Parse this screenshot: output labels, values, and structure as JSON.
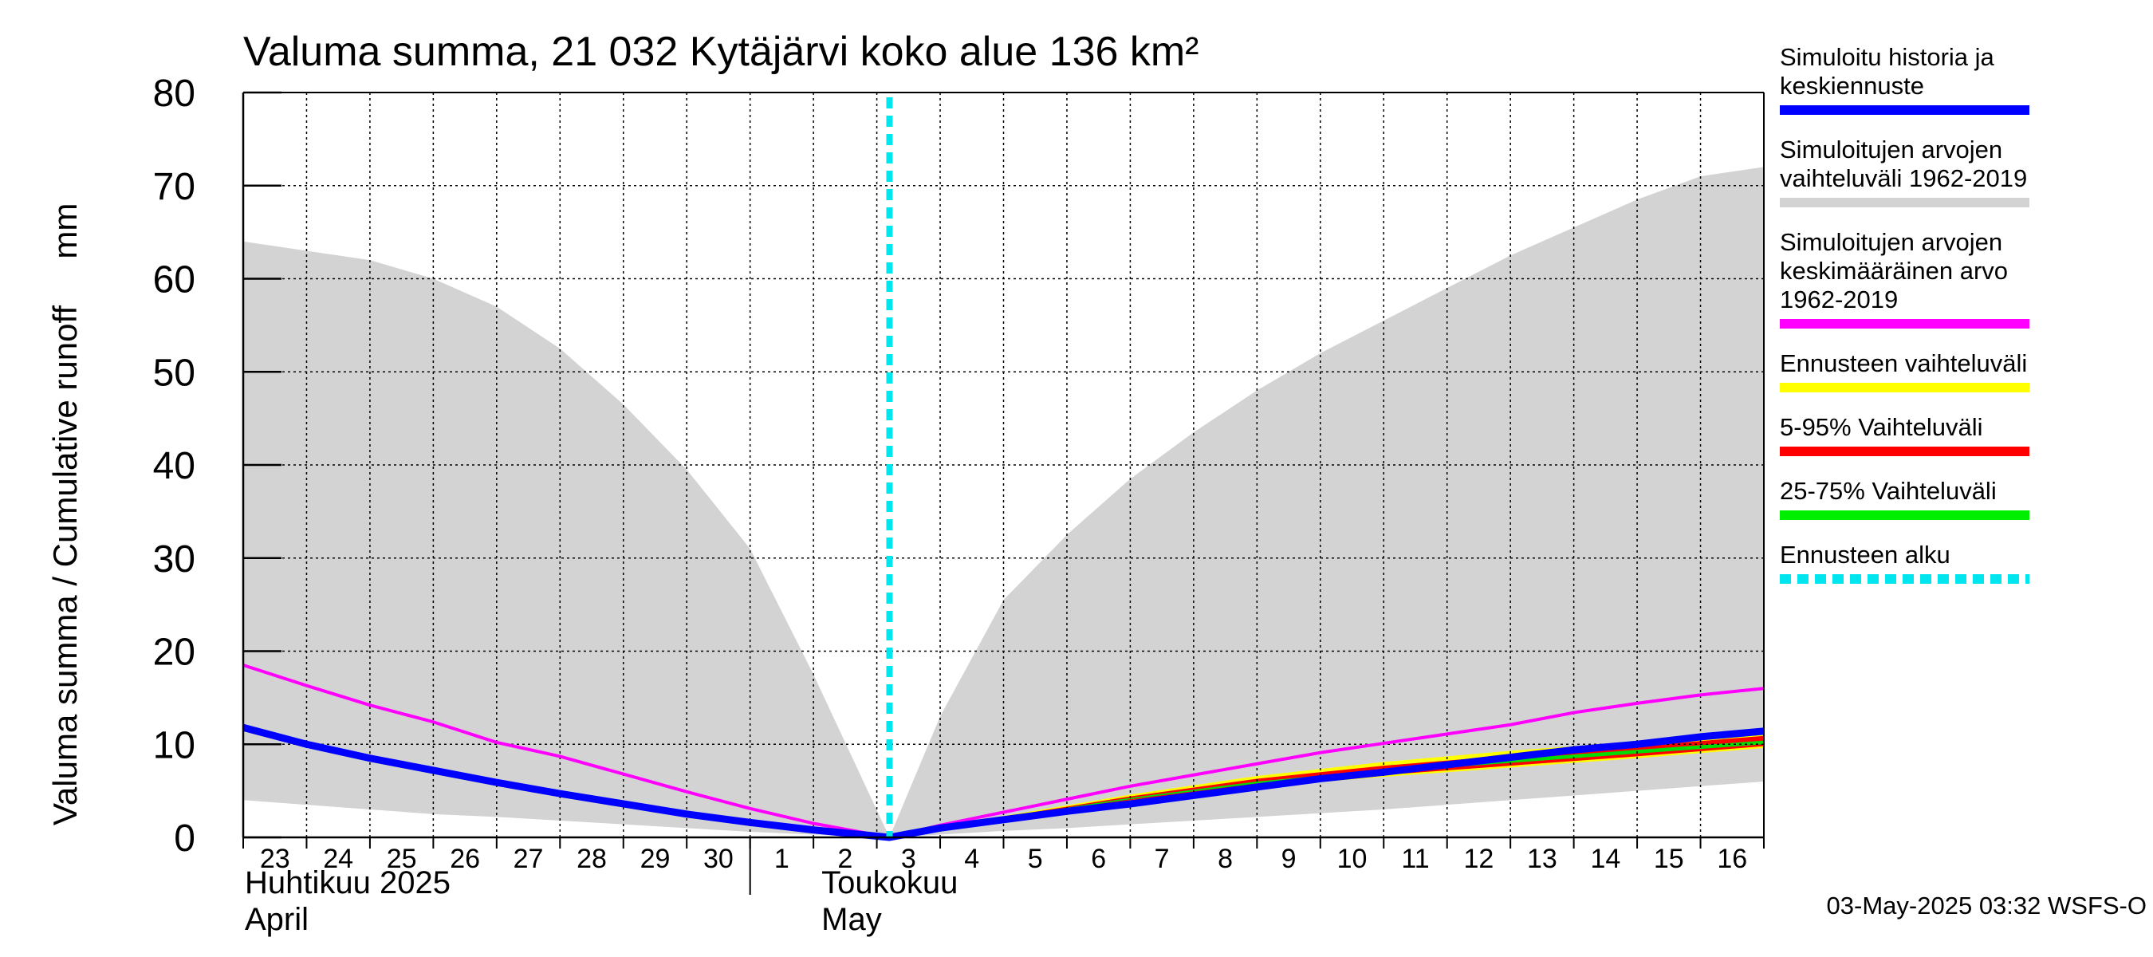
{
  "chart_data": {
    "type": "area",
    "title": "Valuma summa, 21 032 Kytäjärvi koko alue 136 km²",
    "ylabel": "Valuma summa / Cumulative runoff     mm",
    "ylim": [
      0,
      80
    ],
    "yticks": [
      0,
      10,
      20,
      30,
      40,
      50,
      60,
      70,
      80
    ],
    "x_day_labels": [
      "23",
      "24",
      "25",
      "26",
      "27",
      "28",
      "29",
      "30",
      "1",
      "2",
      "3",
      "4",
      "5",
      "6",
      "7",
      "8",
      "9",
      "10",
      "11",
      "12",
      "13",
      "14",
      "15",
      "16"
    ],
    "month_labels": [
      {
        "line1": "Huhtikuu  2025",
        "line2": "April"
      },
      {
        "line1": "Toukokuu",
        "line2": "May"
      }
    ],
    "grid": true,
    "forecast_start_day": 10.2,
    "series": [
      {
        "name": "Simuloitujen arvojen vaihteluväli 1962-2019",
        "kind": "band",
        "color": "#d3d3d3",
        "x": [
          0,
          1,
          2,
          3,
          4,
          5,
          6,
          7,
          8,
          9,
          10.2,
          11,
          12,
          13,
          14,
          15,
          16,
          17,
          18,
          19,
          20,
          21,
          22,
          23,
          24
        ],
        "upper": [
          64,
          63,
          62,
          60,
          57,
          52.5,
          46.5,
          39.5,
          31,
          17.5,
          0,
          13,
          25.5,
          32.5,
          38.5,
          43.5,
          48,
          52,
          55.5,
          59,
          62.5,
          65.5,
          68.5,
          71,
          72
        ],
        "lower": [
          4,
          3.5,
          3,
          2.5,
          2.2,
          1.8,
          1.4,
          1,
          0.6,
          0.3,
          0,
          0.3,
          0.7,
          1,
          1.4,
          1.8,
          2.2,
          2.6,
          3,
          3.5,
          4,
          4.5,
          5,
          5.5,
          6
        ]
      },
      {
        "name": "Ennusteen vaihteluväli",
        "kind": "band",
        "color": "#ffff00",
        "x": [
          10.2,
          12,
          14,
          16,
          18,
          20,
          22,
          24
        ],
        "upper": [
          0,
          2.3,
          4.6,
          6.6,
          8.1,
          9.3,
          10.3,
          11.6
        ],
        "lower": [
          0,
          2.0,
          3.9,
          5.4,
          6.5,
          7.5,
          8.5,
          9.6
        ]
      },
      {
        "name": "5-95% Vaihteluväli",
        "kind": "band",
        "color": "#ff0000",
        "x": [
          10.2,
          12,
          14,
          16,
          18,
          20,
          22,
          24
        ],
        "upper": [
          0,
          2.2,
          4.4,
          6.3,
          7.7,
          8.8,
          9.8,
          10.9
        ],
        "lower": [
          0,
          2.0,
          4.0,
          5.6,
          6.7,
          7.7,
          8.7,
          9.8
        ]
      },
      {
        "name": "25-75% Vaihteluväli",
        "kind": "band",
        "color": "#00dd00",
        "x": [
          10.2,
          12,
          14,
          16,
          18,
          20,
          22,
          24
        ],
        "upper": [
          0,
          2.15,
          4.25,
          6.0,
          7.3,
          8.4,
          9.4,
          10.4
        ],
        "lower": [
          0,
          2.05,
          4.1,
          5.8,
          7.0,
          8.0,
          9.0,
          10.0
        ]
      },
      {
        "name": "Simuloitujen arvojen keskimääräinen arvo 1962-2019",
        "kind": "line",
        "color": "#ff00ff",
        "width": 4,
        "x": [
          0,
          1,
          2,
          3,
          4,
          5,
          6,
          7,
          8,
          9,
          10.2,
          11,
          12,
          13,
          14,
          15,
          16,
          17,
          18,
          19,
          20,
          21,
          22,
          23,
          24
        ],
        "values": [
          18.5,
          16.3,
          14.2,
          12.4,
          10.2,
          8.7,
          6.8,
          4.9,
          3.1,
          1.5,
          0,
          1.3,
          2.7,
          4.1,
          5.5,
          6.7,
          7.9,
          9.1,
          10.1,
          11.1,
          12.1,
          13.4,
          14.4,
          15.3,
          16.0
        ]
      },
      {
        "name": "Simuloitu historia ja keskiennuste",
        "kind": "line",
        "color": "#0000ff",
        "width": 9,
        "x": [
          0,
          1,
          2,
          3,
          4,
          5,
          6,
          7,
          8,
          9,
          10.2,
          11,
          12,
          13,
          14,
          15,
          16,
          17,
          18,
          19,
          20,
          21,
          22,
          23,
          24
        ],
        "values": [
          11.8,
          10.0,
          8.5,
          7.2,
          5.9,
          4.7,
          3.6,
          2.5,
          1.6,
          0.8,
          0,
          1.0,
          1.9,
          2.8,
          3.6,
          4.5,
          5.4,
          6.3,
          7.0,
          7.8,
          8.6,
          9.4,
          10.0,
          10.8,
          11.4
        ]
      }
    ],
    "legend": {
      "placement": "right",
      "items": [
        {
          "lines": [
            "Simuloitu historia ja",
            "keskiennuste"
          ],
          "color": "#0000ff",
          "style": "solid"
        },
        {
          "lines": [
            "Simuloitujen arvojen",
            "vaihteluväli 1962-2019"
          ],
          "color": "#d3d3d3",
          "style": "solid"
        },
        {
          "lines": [
            "Simuloitujen arvojen",
            "keskimääräinen arvo",
            "   1962-2019"
          ],
          "color": "#ff00ff",
          "style": "solid"
        },
        {
          "lines": [
            "Ennusteen vaihteluväli"
          ],
          "color": "#ffff00",
          "style": "solid"
        },
        {
          "lines": [
            "5-95% Vaihteluväli"
          ],
          "color": "#ff0000",
          "style": "solid"
        },
        {
          "lines": [
            "25-75% Vaihteluväli"
          ],
          "color": "#00ee00",
          "style": "solid"
        },
        {
          "lines": [
            "Ennusteen alku"
          ],
          "color": "#00e5ee",
          "style": "dashed"
        }
      ]
    },
    "forecast_line_color": "#00e5ee",
    "footer": "03-May-2025 03:32 WSFS-O"
  }
}
